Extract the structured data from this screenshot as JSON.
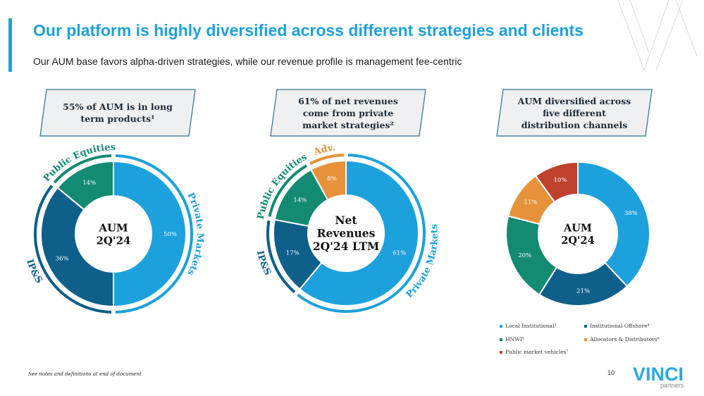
{
  "header": {
    "title": "Our platform is highly diversified across different strategies and clients",
    "subtitle": "Our AUM base favors alpha-driven strategies, while our revenue profile is management fee-centric"
  },
  "callouts": [
    {
      "lines": [
        "55% of AUM is in long",
        "term products¹"
      ]
    },
    {
      "lines": [
        "61% of net revenues",
        "come from private",
        "market strategies²"
      ]
    },
    {
      "lines": [
        "AUM diversified across",
        "five different",
        "distribution channels"
      ]
    }
  ],
  "chart_data": [
    {
      "type": "pie",
      "title": "AUM 2Q'24",
      "center_label": [
        "AUM",
        "2Q'24"
      ],
      "categories": [
        "Private Markets",
        "IP&S",
        "Public Equities"
      ],
      "values": [
        50,
        36,
        14
      ],
      "labels": [
        "50%",
        "36%",
        "14%"
      ],
      "colors": [
        "#1da1dc",
        "#0e5f8a",
        "#138a72"
      ],
      "outer_arcs": [
        {
          "label": "Private Markets",
          "color": "#1da1dc"
        },
        {
          "label": "IP&S",
          "color": "#0e5f8a"
        },
        {
          "label": "Public Equities",
          "color": "#138a72"
        }
      ]
    },
    {
      "type": "pie",
      "title": "Net Revenues 2Q'24 LTM",
      "center_label": [
        "Net",
        "Revenues",
        "2Q'24 LTM"
      ],
      "categories": [
        "Private Markets",
        "IP&S",
        "Public Equities",
        "Adv."
      ],
      "values": [
        61,
        17,
        14,
        8
      ],
      "labels": [
        "61%",
        "17%",
        "14%",
        "8%"
      ],
      "colors": [
        "#1da1dc",
        "#0e5f8a",
        "#138a72",
        "#e6923a"
      ],
      "outer_arcs": [
        {
          "label": "Private Markets",
          "color": "#1da1dc"
        },
        {
          "label": "IP&S",
          "color": "#0e5f8a"
        },
        {
          "label": "Public Equities",
          "color": "#138a72"
        },
        {
          "label": "Adv.",
          "color": "#e6923a"
        }
      ]
    },
    {
      "type": "pie",
      "title": "AUM 2Q'24",
      "center_label": [
        "AUM",
        "2Q'24"
      ],
      "categories": [
        "Local Institutional³",
        "Institutional Offshore⁴",
        "HNWI⁵",
        "Allocators & Distributors⁶",
        "Public market vehicles⁷"
      ],
      "values": [
        38,
        21,
        20,
        11,
        10
      ],
      "labels": [
        "38%",
        "21%",
        "20%",
        "11%",
        "10%"
      ],
      "colors": [
        "#1da1dc",
        "#0e5f8a",
        "#138a72",
        "#e6923a",
        "#c0412b"
      ]
    }
  ],
  "legend": {
    "items": [
      {
        "label": "Local Institutional³",
        "color": "#1da1dc"
      },
      {
        "label": "Institutional Offshore⁴",
        "color": "#0e5f8a"
      },
      {
        "label": "HNWI⁵",
        "color": "#138a72"
      },
      {
        "label": "Allocators & Distributors⁶",
        "color": "#e6923a"
      },
      {
        "label": "Public market vehicles⁷",
        "color": "#c0412b"
      }
    ]
  },
  "footer": {
    "note": "See notes and definitions at end of document",
    "page": "10",
    "logo_text": "VINCI",
    "logo_sub": "partners"
  },
  "colors": {
    "accent": "#1da1dc",
    "callout_bg": "#eef0f2",
    "callout_border": "#2d6e8c"
  }
}
